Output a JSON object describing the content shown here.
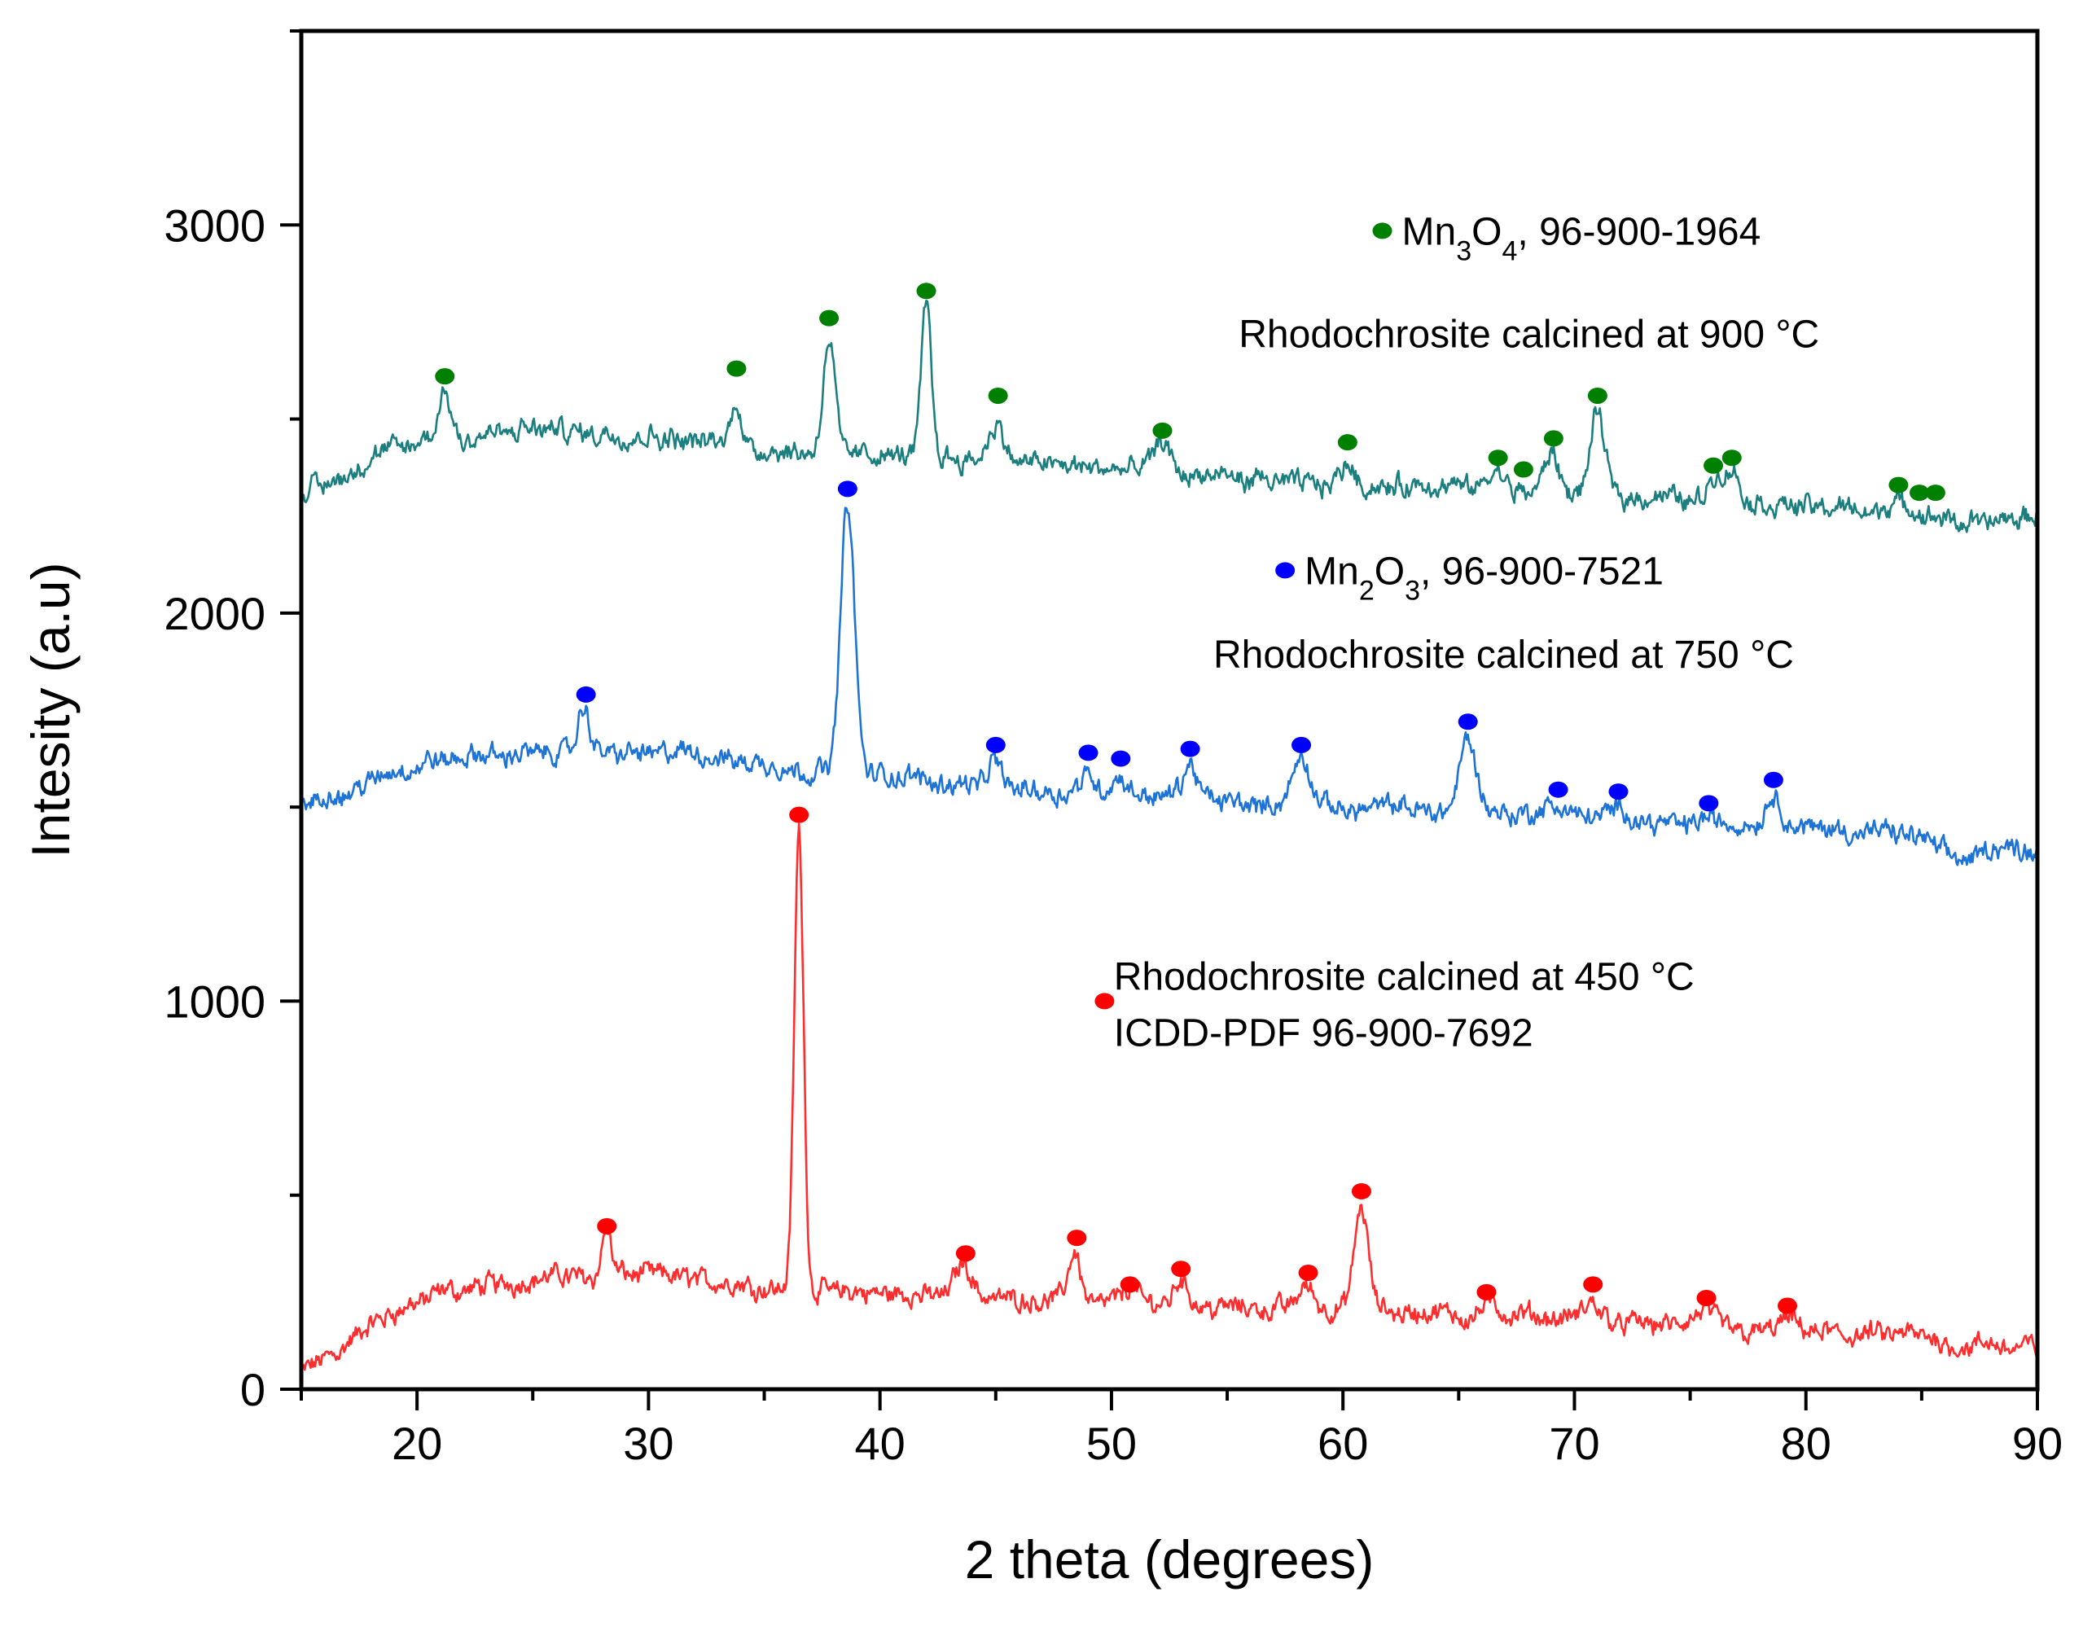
{
  "chart_data": {
    "type": "line",
    "title": "",
    "xlabel": "2 theta (degrees)",
    "ylabel": "Intesity (a.u)",
    "xlim": [
      15,
      90
    ],
    "ylim": [
      0,
      3500
    ],
    "x_ticks": [
      20,
      30,
      40,
      50,
      60,
      70,
      80,
      90
    ],
    "y_ticks": [
      0,
      1000,
      2000,
      3000
    ],
    "x_minor_step": 5,
    "y_minor_step": 500,
    "grid": false,
    "series": [
      {
        "name": "Rhodochrosite calcined at 450 °C",
        "color": "#ff2d2d",
        "marker_color": "#ff0000",
        "baseline": [
          [
            15,
            40
          ],
          [
            17,
            120
          ],
          [
            19,
            200
          ],
          [
            21,
            245
          ],
          [
            25,
            285
          ],
          [
            28,
            300
          ],
          [
            30,
            295
          ],
          [
            32,
            285
          ],
          [
            35,
            265
          ],
          [
            36,
            260
          ],
          [
            37,
            255
          ],
          [
            40,
            245
          ],
          [
            44,
            240
          ],
          [
            48,
            230
          ],
          [
            52,
            220
          ],
          [
            56,
            210
          ],
          [
            60,
            205
          ],
          [
            62,
            200
          ],
          [
            65,
            190
          ],
          [
            70,
            180
          ],
          [
            74,
            165
          ],
          [
            78,
            150
          ],
          [
            82,
            140
          ],
          [
            85,
            135
          ],
          [
            87,
            110
          ],
          [
            88,
            110
          ],
          [
            90,
            110
          ]
        ],
        "peaks": [
          [
            28.2,
            120,
            0.18
          ],
          [
            36.5,
            1180,
            0.2
          ],
          [
            43.6,
            90,
            0.35
          ],
          [
            48.4,
            130,
            0.25
          ],
          [
            50.8,
            40,
            0.3
          ],
          [
            53.0,
            70,
            0.3
          ],
          [
            58.4,
            60,
            0.35
          ],
          [
            60.8,
            260,
            0.3
          ],
          [
            66.3,
            30,
            0.4
          ],
          [
            70.8,
            40,
            0.4
          ],
          [
            75.7,
            40,
            0.4
          ],
          [
            79.2,
            30,
            0.4
          ]
        ],
        "markers": [
          [
            28.2,
            420
          ],
          [
            36.5,
            1480
          ],
          [
            43.7,
            350
          ],
          [
            48.5,
            390
          ],
          [
            50.8,
            270
          ],
          [
            53.0,
            310
          ],
          [
            58.5,
            300
          ],
          [
            60.8,
            510
          ],
          [
            66.2,
            250
          ],
          [
            70.8,
            270
          ],
          [
            75.7,
            235
          ],
          [
            79.2,
            215
          ]
        ]
      },
      {
        "name": "Rhodochrosite calcined at 750 °C",
        "color": "#1e74d6",
        "marker_color": "#0000ff",
        "baseline": [
          [
            15,
            1500
          ],
          [
            17,
            1540
          ],
          [
            19,
            1590
          ],
          [
            21,
            1620
          ],
          [
            25,
            1640
          ],
          [
            28,
            1640
          ],
          [
            31,
            1640
          ],
          [
            34,
            1620
          ],
          [
            36,
            1600
          ],
          [
            38,
            1590
          ],
          [
            40,
            1580
          ],
          [
            44,
            1560
          ],
          [
            48,
            1540
          ],
          [
            52,
            1530
          ],
          [
            56,
            1510
          ],
          [
            60,
            1500
          ],
          [
            65,
            1490
          ],
          [
            70,
            1480
          ],
          [
            74,
            1460
          ],
          [
            78,
            1450
          ],
          [
            82,
            1440
          ],
          [
            85,
            1420
          ],
          [
            86,
            1380
          ],
          [
            87,
            1360
          ],
          [
            88,
            1400
          ],
          [
            90,
            1390
          ]
        ],
        "peaks": [
          [
            27.2,
            110,
            0.25
          ],
          [
            38.6,
            700,
            0.3
          ],
          [
            45.0,
            60,
            0.3
          ],
          [
            49.0,
            50,
            0.3
          ],
          [
            50.3,
            40,
            0.3
          ],
          [
            53.4,
            80,
            0.3
          ],
          [
            58.2,
            120,
            0.35
          ],
          [
            65.4,
            190,
            0.35
          ],
          [
            69.3,
            20,
            0.4
          ],
          [
            71.9,
            20,
            0.4
          ],
          [
            75.8,
            20,
            0.4
          ],
          [
            78.6,
            80,
            0.35
          ]
        ],
        "markers": [
          [
            27.3,
            1790
          ],
          [
            38.6,
            2320
          ],
          [
            45.0,
            1660
          ],
          [
            49.0,
            1640
          ],
          [
            50.4,
            1625
          ],
          [
            53.4,
            1650
          ],
          [
            58.2,
            1660
          ],
          [
            65.4,
            1720
          ],
          [
            69.3,
            1545
          ],
          [
            71.9,
            1540
          ],
          [
            75.8,
            1510
          ],
          [
            78.6,
            1570
          ]
        ]
      },
      {
        "name": "Rhodochrosite calcined at 900 °C",
        "color": "#1b7f7f",
        "marker_color": "#008000",
        "baseline": [
          [
            15,
            2310
          ],
          [
            17,
            2360
          ],
          [
            19,
            2420
          ],
          [
            21,
            2450
          ],
          [
            25,
            2470
          ],
          [
            30,
            2460
          ],
          [
            33,
            2440
          ],
          [
            36,
            2420
          ],
          [
            40,
            2410
          ],
          [
            44,
            2400
          ],
          [
            48,
            2380
          ],
          [
            52,
            2360
          ],
          [
            56,
            2340
          ],
          [
            60,
            2330
          ],
          [
            65,
            2320
          ],
          [
            70,
            2310
          ],
          [
            74,
            2300
          ],
          [
            78,
            2280
          ],
          [
            82,
            2270
          ],
          [
            86,
            2240
          ],
          [
            88,
            2230
          ],
          [
            90,
            2250
          ]
        ],
        "peaks": [
          [
            21.2,
            120,
            0.25
          ],
          [
            33.8,
            120,
            0.2
          ],
          [
            37.8,
            300,
            0.25
          ],
          [
            42.0,
            390,
            0.22
          ],
          [
            45.0,
            100,
            0.3
          ],
          [
            52.2,
            80,
            0.35
          ],
          [
            60.2,
            60,
            0.3
          ],
          [
            66.6,
            40,
            0.35
          ],
          [
            69.0,
            100,
            0.3
          ],
          [
            71.0,
            200,
            0.3
          ],
          [
            76.0,
            60,
            0.3
          ],
          [
            76.8,
            80,
            0.3
          ],
          [
            84.0,
            30,
            0.35
          ]
        ],
        "markers": [
          [
            21.2,
            2610
          ],
          [
            33.8,
            2630
          ],
          [
            37.8,
            2760
          ],
          [
            42.0,
            2830
          ],
          [
            45.1,
            2560
          ],
          [
            52.2,
            2470
          ],
          [
            60.2,
            2440
          ],
          [
            66.7,
            2400
          ],
          [
            67.8,
            2370
          ],
          [
            69.1,
            2450
          ],
          [
            71.0,
            2560
          ],
          [
            76.0,
            2380
          ],
          [
            76.8,
            2400
          ],
          [
            84.0,
            2330
          ],
          [
            84.9,
            2310
          ],
          [
            85.6,
            2310
          ]
        ]
      }
    ],
    "annotations": {
      "s900": {
        "marker_x": 61.7,
        "marker_y": 2985,
        "text_pre": "Mn",
        "sub1": "3",
        "text_mid": "O",
        "sub2": "4",
        "text_post": ",  96-900-1964",
        "label": "Rhodochrosite calcined at 900 °C",
        "label_x": 55.5,
        "label_y": 2720
      },
      "s750": {
        "marker_x": 57.5,
        "marker_y": 2110,
        "text_pre": "Mn",
        "sub1": "2",
        "text_mid": "O",
        "sub2": "3",
        "text_post": ",  96-900-7521",
        "label": "Rhodochrosite calcined at 750 °C",
        "label_x": 54.4,
        "label_y": 1895
      },
      "s450": {
        "marker_x": 49.7,
        "marker_y": 1000,
        "label": "Rhodochrosite calcined at 450 °C",
        "label_x": 50.1,
        "label_y": 1065,
        "ref": "ICDD-PDF  96-900-7692",
        "ref_x": 50.1,
        "ref_y": 920
      }
    }
  }
}
